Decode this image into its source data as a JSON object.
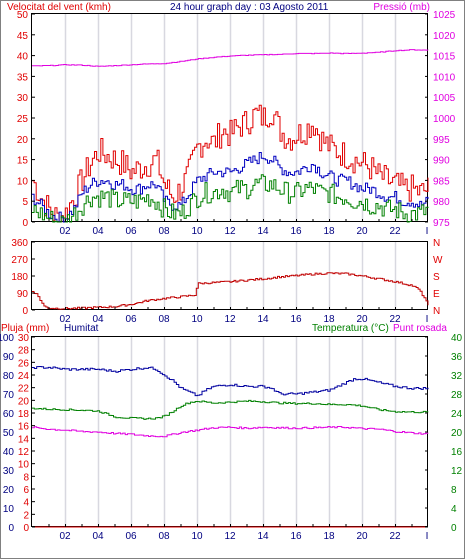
{
  "chart_data": [
    {
      "type": "line",
      "title": "24 hour graph day : 03 Agosto 2011",
      "left_label": "Velocitat del vent (kmh)",
      "right_label": "Pressió (mb)",
      "left_ticks": [
        "0",
        "5",
        "10",
        "15",
        "20",
        "25",
        "30",
        "35",
        "40",
        "45",
        "50"
      ],
      "right_ticks": [
        "975",
        "980",
        "985",
        "990",
        "995",
        "1000",
        "1005",
        "1010",
        "1015",
        "1020",
        "1025"
      ],
      "x_ticks": [
        "02",
        "04",
        "06",
        "08",
        "10",
        "12",
        "14",
        "16",
        "18",
        "20",
        "22"
      ],
      "ylim": [
        0,
        50
      ],
      "y2lim": [
        975,
        1025
      ],
      "grid": true,
      "series": [
        {
          "key": "gust",
          "color": "#e00000",
          "hours": [
            0,
            0.5,
            1,
            1.5,
            2,
            2.5,
            3,
            3.5,
            4,
            4.5,
            5,
            5.5,
            6,
            6.5,
            7,
            7.5,
            8,
            8.5,
            9,
            9.5,
            10,
            10.5,
            11,
            11.5,
            12,
            12.5,
            13,
            13.5,
            14,
            14.5,
            15,
            15.5,
            16,
            16.5,
            17,
            17.5,
            18,
            18.5,
            19,
            19.5,
            20,
            20.5,
            21,
            21.5,
            22,
            22.5,
            23,
            23.5,
            24
          ],
          "values": [
            10,
            6,
            3,
            1,
            2,
            6,
            10,
            14,
            17,
            16,
            15,
            14,
            12,
            13,
            14,
            15,
            9,
            6,
            8,
            12,
            18,
            20,
            19,
            22,
            21,
            23,
            24,
            26,
            25,
            27,
            22,
            20,
            21,
            22,
            24,
            20,
            18,
            17,
            16,
            15,
            14,
            13,
            11,
            10,
            9,
            8,
            8,
            7,
            8
          ]
        },
        {
          "key": "wind",
          "color": "#0000c0",
          "hours": [
            0,
            0.5,
            1,
            1.5,
            2,
            2.5,
            3,
            3.5,
            4,
            4.5,
            5,
            5.5,
            6,
            6.5,
            7,
            7.5,
            8,
            8.5,
            9,
            9.5,
            10,
            10.5,
            11,
            11.5,
            12,
            12.5,
            13,
            13.5,
            14,
            14.5,
            15,
            15.5,
            16,
            16.5,
            17,
            17.5,
            18,
            18.5,
            19,
            19.5,
            20,
            20.5,
            21,
            21.5,
            22,
            22.5,
            23,
            23.5,
            24
          ],
          "values": [
            6,
            4,
            2,
            1,
            1,
            3,
            7,
            9,
            10,
            10,
            9,
            9,
            8,
            8,
            9,
            9,
            5,
            4,
            4,
            7,
            10,
            11,
            12,
            12,
            12,
            13,
            14,
            15,
            16,
            15,
            13,
            12,
            12,
            13,
            14,
            12,
            11,
            10,
            10,
            9,
            8,
            8,
            7,
            6,
            6,
            5,
            5,
            4,
            5
          ]
        },
        {
          "key": "avg",
          "color": "#008000",
          "hours": [
            0,
            0.5,
            1,
            1.5,
            2,
            2.5,
            3,
            3.5,
            4,
            4.5,
            5,
            5.5,
            6,
            6.5,
            7,
            7.5,
            8,
            8.5,
            9,
            9.5,
            10,
            10.5,
            11,
            11.5,
            12,
            12.5,
            13,
            13.5,
            14,
            14.5,
            15,
            15.5,
            16,
            16.5,
            17,
            17.5,
            18,
            18.5,
            19,
            19.5,
            20,
            20.5,
            21,
            21.5,
            22,
            22.5,
            23,
            23.5,
            24
          ],
          "values": [
            3,
            2,
            1,
            0,
            0,
            2,
            4,
            6,
            6,
            6,
            5,
            5,
            5,
            5,
            6,
            5,
            3,
            2,
            2,
            4,
            6,
            7,
            7,
            8,
            7,
            8,
            8,
            9,
            9,
            9,
            8,
            7,
            7,
            8,
            8,
            7,
            7,
            6,
            6,
            5,
            5,
            4,
            4,
            3,
            3,
            2,
            2,
            2,
            3
          ]
        },
        {
          "key": "pressure",
          "axis": "right",
          "color": "#e000e0",
          "hours": [
            0,
            1,
            2,
            3,
            4,
            5,
            6,
            7,
            8,
            9,
            10,
            11,
            12,
            13,
            14,
            15,
            16,
            17,
            18,
            19,
            20,
            21,
            22,
            23,
            24
          ],
          "values": [
            1012.5,
            1012.6,
            1012.8,
            1012.7,
            1012.4,
            1012.6,
            1012.8,
            1013.0,
            1013.1,
            1013.6,
            1014.2,
            1014.6,
            1014.9,
            1015.1,
            1015.2,
            1015.3,
            1015.5,
            1015.5,
            1015.6,
            1015.5,
            1015.6,
            1015.8,
            1016.2,
            1016.4,
            1016.3
          ]
        }
      ]
    },
    {
      "type": "line",
      "left_ticks": [
        "0",
        "90",
        "180",
        "270",
        "360"
      ],
      "compass": [
        "N",
        "W",
        "S",
        "E",
        "N"
      ],
      "x_ticks": [
        "02",
        "04",
        "06",
        "08",
        "10",
        "12",
        "14",
        "16",
        "18",
        "20",
        "22"
      ],
      "ylim": [
        0,
        360
      ],
      "series": [
        {
          "key": "direction",
          "color": "#c00000",
          "hours": [
            0,
            0.3,
            0.7,
            1,
            2,
            3,
            4,
            5,
            6,
            7,
            7.9,
            8.1,
            9,
            9.9,
            10,
            11,
            12,
            13,
            14,
            15,
            16,
            17,
            18,
            19,
            20,
            21,
            22,
            22.5,
            23,
            23.4,
            23.8,
            24
          ],
          "values": [
            100,
            80,
            20,
            10,
            8,
            10,
            14,
            18,
            30,
            50,
            60,
            62,
            70,
            80,
            140,
            145,
            150,
            158,
            165,
            175,
            182,
            190,
            195,
            192,
            180,
            165,
            150,
            140,
            130,
            110,
            60,
            20
          ]
        }
      ]
    },
    {
      "type": "line",
      "left_labels": [
        "Pluja (mm)",
        "Humitat"
      ],
      "right_labels": [
        "Temperatura (°C)",
        "Punt rosada"
      ],
      "rain_ticks": [
        "0",
        "2",
        "4",
        "6",
        "8",
        "10",
        "12",
        "14",
        "16",
        "18",
        "20",
        "22",
        "24",
        "26",
        "28",
        "30"
      ],
      "humidity_ticks": [
        "0",
        "10",
        "20",
        "30",
        "40",
        "50",
        "60",
        "70",
        "80",
        "90",
        "100"
      ],
      "temp_ticks": [
        "0",
        "4",
        "8",
        "12",
        "16",
        "20",
        "24",
        "28",
        "32",
        "36",
        "40"
      ],
      "x_ticks": [
        "02",
        "04",
        "06",
        "08",
        "10",
        "12",
        "14",
        "16",
        "18",
        "20",
        "22"
      ],
      "grid": true,
      "series": [
        {
          "key": "rain",
          "axis": "rain",
          "color": "#e00000",
          "hours": [
            0,
            24
          ],
          "values": [
            0,
            0
          ]
        },
        {
          "key": "humidity",
          "axis": "humidity",
          "color": "#0000a0",
          "hours": [
            0,
            1,
            2,
            3,
            4,
            5,
            6,
            7,
            7.5,
            8,
            8.5,
            9,
            9.5,
            10,
            10.5,
            11,
            12,
            13,
            14,
            14.5,
            15,
            16,
            17,
            18,
            19,
            19.5,
            20,
            21,
            22,
            23,
            24
          ],
          "values": [
            84,
            84,
            83,
            83,
            83,
            82,
            83,
            84,
            83,
            80,
            77,
            73,
            71,
            69,
            72,
            74,
            75,
            74,
            74,
            73,
            70,
            70,
            71,
            72,
            76,
            78,
            78,
            76,
            74,
            73,
            73
          ]
        },
        {
          "key": "temperature",
          "axis": "temp",
          "color": "#008000",
          "hours": [
            0,
            1,
            2,
            3,
            4,
            5,
            6,
            7,
            7.5,
            8,
            8.5,
            9,
            9.5,
            10,
            10.5,
            11,
            12,
            13,
            14,
            15,
            16,
            17,
            18,
            19,
            20,
            21,
            22,
            23,
            24
          ],
          "values": [
            25.0,
            24.8,
            24.7,
            24.6,
            24.4,
            23.2,
            22.9,
            22.8,
            22.9,
            23.3,
            24.3,
            25.5,
            26.2,
            26.5,
            26.3,
            26.1,
            26.3,
            26.5,
            26.4,
            26.1,
            26.0,
            26.0,
            25.8,
            25.8,
            25.5,
            24.7,
            24.3,
            24.2,
            24.2
          ]
        },
        {
          "key": "dewpoint",
          "axis": "temp",
          "color": "#e000e0",
          "hours": [
            0,
            1,
            2,
            3,
            4,
            5,
            6,
            7,
            8,
            9,
            10,
            11,
            12,
            13,
            14,
            15,
            16,
            17,
            18,
            19,
            20,
            21,
            22,
            23,
            24
          ],
          "values": [
            21.0,
            20.6,
            20.4,
            20.1,
            20.0,
            19.7,
            19.5,
            19.2,
            19.1,
            19.9,
            20.4,
            20.9,
            21.0,
            20.8,
            21.0,
            20.9,
            20.8,
            20.9,
            21.0,
            21.0,
            20.7,
            20.6,
            20.1,
            19.8,
            19.6
          ]
        }
      ]
    }
  ]
}
